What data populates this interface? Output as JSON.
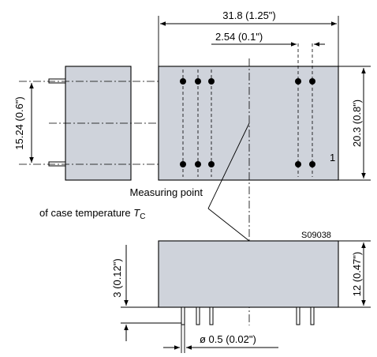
{
  "dimensions": {
    "width_top": "31.8 (1.25\")",
    "pitch": "2.54 (0.1\")",
    "height_top": "20.3 (0.8\")",
    "pin_row_spacing": "15.24 (0.6\")",
    "height_side": "12 (0.47\")",
    "standoff": "3 (0.12\")",
    "pin_diameter": "ø 0.5 (0.02\")"
  },
  "labels": {
    "measuring_line1": "Measuring point",
    "measuring_line2": "of case temperature ",
    "tc_symbol": "T",
    "tc_subscript": "C",
    "pin1": "1",
    "drawing_id": "S09038"
  },
  "colors": {
    "body_fill": "#cfd3db",
    "line": "#000000"
  }
}
